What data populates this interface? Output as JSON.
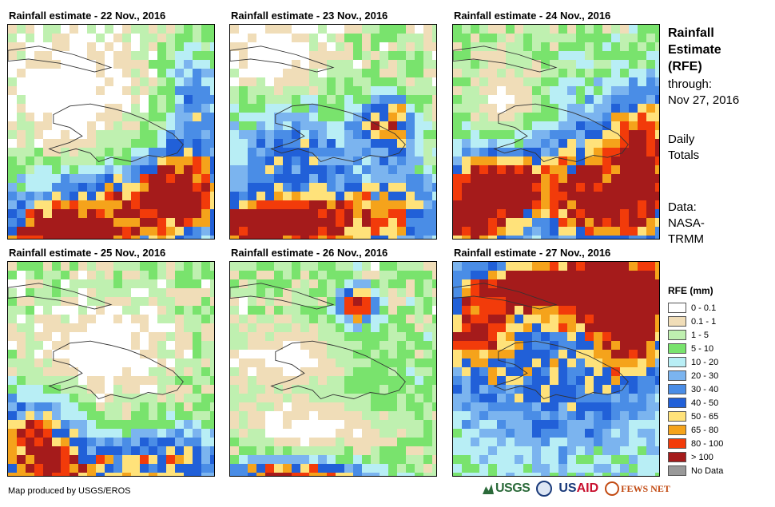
{
  "panels": [
    {
      "title": "Rainfall estimate - 22 Nov., 2016",
      "day": 22
    },
    {
      "title": "Rainfall estimate - 23 Nov., 2016",
      "day": 23
    },
    {
      "title": "Rainfall estimate - 24 Nov., 2016",
      "day": 24
    },
    {
      "title": "Rainfall estimate - 25 Nov., 2016",
      "day": 25
    },
    {
      "title": "Rainfall estimate - 26 Nov., 2016",
      "day": 26
    },
    {
      "title": "Rainfall estimate - 27 Nov., 2016",
      "day": 27
    }
  ],
  "sidebar": {
    "title_line1": "Rainfall",
    "title_line2": "Estimate",
    "title_line3": "(RFE)",
    "through_label": "through:",
    "through_date": "Nov 27, 2016",
    "totals_line1": "Daily",
    "totals_line2": "Totals",
    "data_line1": "Data:",
    "data_line2": "NASA-",
    "data_line3": "TRMM"
  },
  "legend": {
    "title": "RFE (mm)",
    "classes": [
      {
        "label": "0 - 0.1",
        "color": "#ffffff"
      },
      {
        "label": "0.1 - 1",
        "color": "#f0ddb8"
      },
      {
        "label": "1 - 5",
        "color": "#bff0b0"
      },
      {
        "label": "5 - 10",
        "color": "#79e36d"
      },
      {
        "label": "10 - 20",
        "color": "#b8eef5"
      },
      {
        "label": "20 - 30",
        "color": "#7bb4ef"
      },
      {
        "label": "30 - 40",
        "color": "#4a8de6"
      },
      {
        "label": "40 - 50",
        "color": "#2160d8"
      },
      {
        "label": "50 - 65",
        "color": "#ffe27a"
      },
      {
        "label": "65 - 80",
        "color": "#f5a31b"
      },
      {
        "label": "80 - 100",
        "color": "#f23b0a"
      },
      {
        "label": "> 100",
        "color": "#a51b1b"
      },
      {
        "label": "No Data",
        "color": "#999999"
      }
    ]
  },
  "credit": "Map produced by USGS/EROS",
  "logos": {
    "usgs": "USGS",
    "usaid_us": "US",
    "usaid_aid": "AID",
    "fews": "FEWS NET"
  }
}
